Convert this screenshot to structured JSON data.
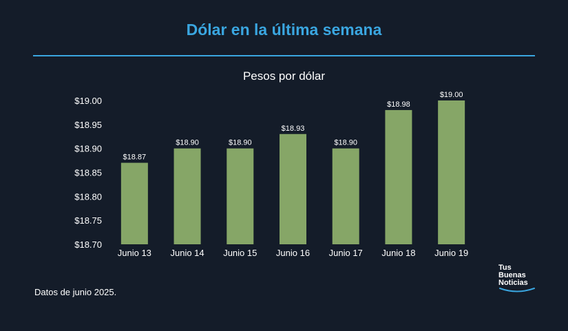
{
  "title": "Dólar en la última semana",
  "subtitle": "Pesos por dólar",
  "footnote": "Datos de junio 2025.",
  "logo": {
    "line1": "Tus",
    "line2": "Buenas",
    "line3": "Noticias"
  },
  "colors": {
    "background": "#141c29",
    "accent": "#3aa6e0",
    "bar": "#86a667",
    "text": "#ffffff"
  },
  "chart_data": {
    "type": "bar",
    "title": "Pesos por dólar",
    "xlabel": "",
    "ylabel": "",
    "categories": [
      "Junio 13",
      "Junio 14",
      "Junio 15",
      "Junio 16",
      "Junio 17",
      "Junio 18",
      "Junio 19"
    ],
    "values": [
      18.87,
      18.9,
      18.9,
      18.93,
      18.9,
      18.98,
      19.0
    ],
    "value_labels": [
      "$18.87",
      "$18.90",
      "$18.90",
      "$18.93",
      "$18.90",
      "$18.98",
      "$19.00"
    ],
    "ylim": [
      18.7,
      19.0
    ],
    "yticks": [
      18.7,
      18.75,
      18.8,
      18.85,
      18.9,
      18.95,
      19.0
    ],
    "ytick_labels": [
      "$18.70",
      "$18.75",
      "$18.80",
      "$18.85",
      "$18.90",
      "$18.95",
      "$19.00"
    ],
    "grid": false,
    "legend": "none"
  }
}
